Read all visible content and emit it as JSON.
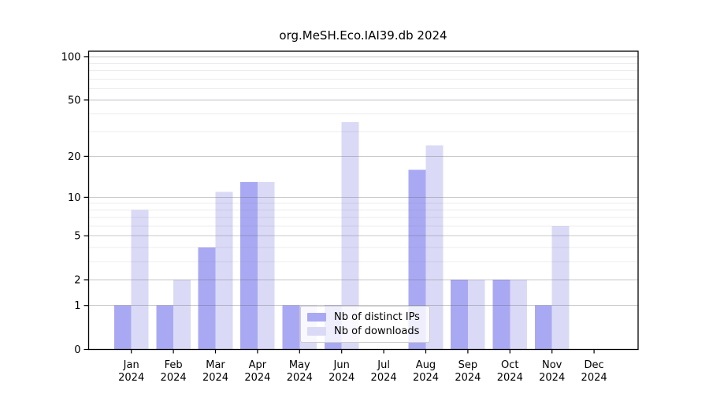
{
  "chart_data": {
    "type": "bar",
    "title": "org.MeSH.Eco.IAI39.db 2024",
    "year_label": "2024",
    "categories": [
      "Jan",
      "Feb",
      "Mar",
      "Apr",
      "May",
      "Jun",
      "Jul",
      "Aug",
      "Sep",
      "Oct",
      "Nov",
      "Dec"
    ],
    "series": [
      {
        "name": "Nb of distinct IPs",
        "color": "#a9a9f3",
        "values": [
          1,
          1,
          4,
          13,
          1,
          1,
          0,
          16,
          2,
          2,
          1,
          0
        ]
      },
      {
        "name": "Nb of downloads",
        "color": "#dadaf7",
        "values": [
          8,
          2,
          11,
          13,
          1,
          35,
          0,
          24,
          2,
          2,
          6,
          0
        ]
      }
    ],
    "yscale": "log1p",
    "ylim": [
      0,
      110
    ],
    "yticks_major": [
      0,
      1,
      2,
      5,
      10,
      20,
      50,
      100
    ],
    "yticks_minor": [
      3,
      4,
      6,
      7,
      8,
      9,
      30,
      40,
      60,
      70,
      80,
      90
    ],
    "grid": true,
    "legend_position": "lower center",
    "colors": {
      "axis": "#000000",
      "grid_major": "rgba(90,90,100,0.32)",
      "grid_minor": "rgba(110,110,120,0.13)",
      "tick_text": "#000000"
    }
  }
}
